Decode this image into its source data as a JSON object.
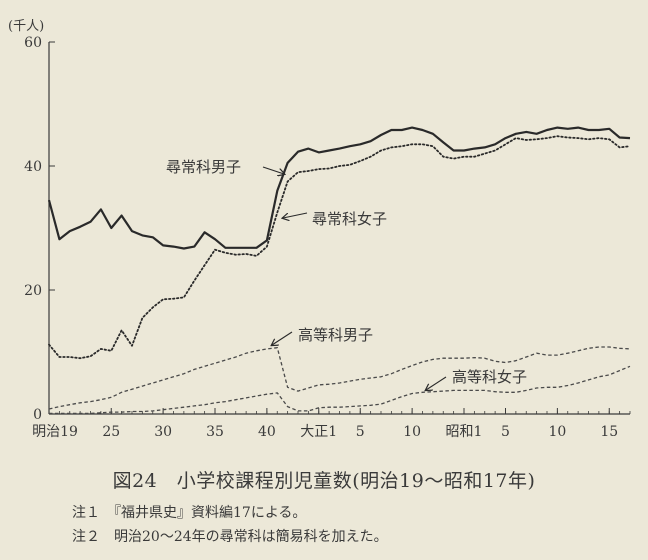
{
  "caption": "図24　小学校課程別児童数(明治19～昭和17年)",
  "notes": [
    "注１　『福井県史』資料編17による。",
    "注２　明治20～24年の尋常科は簡易科を加えた。"
  ],
  "chart_data": {
    "type": "line",
    "ylabel": "(千人)",
    "ylim": [
      0,
      60
    ],
    "yticks": [
      0,
      20,
      40,
      60
    ],
    "x": [
      1886,
      1887,
      1888,
      1889,
      1890,
      1891,
      1892,
      1893,
      1894,
      1895,
      1896,
      1897,
      1898,
      1899,
      1900,
      1901,
      1902,
      1903,
      1904,
      1905,
      1906,
      1907,
      1908,
      1909,
      1910,
      1911,
      1912,
      1913,
      1914,
      1915,
      1916,
      1917,
      1918,
      1919,
      1920,
      1921,
      1922,
      1923,
      1924,
      1925,
      1926,
      1927,
      1928,
      1929,
      1930,
      1931,
      1932,
      1933,
      1934,
      1935,
      1936,
      1937,
      1938,
      1939,
      1940,
      1941,
      1942
    ],
    "xlim": [
      1886,
      1942
    ],
    "xticks": [
      {
        "x": 1886,
        "label": "明治19"
      },
      {
        "x": 1892,
        "label": "25"
      },
      {
        "x": 1897,
        "label": "30"
      },
      {
        "x": 1902,
        "label": "35"
      },
      {
        "x": 1907,
        "label": "40"
      },
      {
        "x": 1912,
        "label": "大正1"
      },
      {
        "x": 1916,
        "label": "5"
      },
      {
        "x": 1921,
        "label": "10"
      },
      {
        "x": 1926,
        "label": "昭和1"
      },
      {
        "x": 1930,
        "label": "5"
      },
      {
        "x": 1935,
        "label": "10"
      },
      {
        "x": 1940,
        "label": "15"
      }
    ],
    "series": [
      {
        "name": "尋常科男子",
        "style": "solid",
        "color": "#2a2a2a",
        "width": 2.2,
        "values": [
          34.5,
          28.2,
          29.5,
          30.2,
          31,
          33,
          30,
          32,
          29.5,
          28.8,
          28.5,
          27.2,
          27,
          26.7,
          27,
          29.3,
          28.2,
          26.8,
          26.8,
          26.8,
          26.8,
          28,
          36,
          40.5,
          42.3,
          42.8,
          42.2,
          42.5,
          42.8,
          43.2,
          43.5,
          44,
          45,
          45.8,
          45.8,
          46.2,
          45.8,
          45.2,
          43.8,
          42.5,
          42.5,
          42.8,
          43,
          43.5,
          44.5,
          45.2,
          45.5,
          45.2,
          45.8,
          46.2,
          46,
          46.2,
          45.8,
          45.8,
          46,
          44.6,
          44.5
        ]
      },
      {
        "name": "尋常科女子",
        "style": "dotted",
        "color": "#2a2a2a",
        "width": 1.8,
        "values": [
          11.2,
          9.2,
          9.2,
          9,
          9.3,
          10.5,
          10.2,
          13.5,
          11,
          15.5,
          17.2,
          18.5,
          18.6,
          18.8,
          21.5,
          24,
          26.5,
          26,
          25.7,
          25.8,
          25.5,
          27,
          32.5,
          37.5,
          39,
          39.2,
          39.5,
          39.6,
          40,
          40.2,
          40.8,
          41.5,
          42.5,
          43,
          43.2,
          43.5,
          43.5,
          43.2,
          41.5,
          41.2,
          41.5,
          41.5,
          42,
          42.5,
          43.5,
          44.5,
          44.2,
          44.3,
          44.5,
          44.8,
          44.6,
          44.5,
          44.3,
          44.5,
          44.3,
          43,
          43.2
        ]
      },
      {
        "name": "高等科男子",
        "style": "dashed",
        "color": "#4a4a4a",
        "width": 1.3,
        "values": [
          0.8,
          1.2,
          1.5,
          1.8,
          2,
          2.3,
          2.7,
          3.5,
          4,
          4.5,
          5,
          5.5,
          6,
          6.5,
          7.2,
          7.7,
          8.2,
          8.7,
          9.2,
          9.8,
          10.2,
          10.5,
          10.7,
          4.3,
          3.7,
          4.2,
          4.7,
          4.8,
          5,
          5.3,
          5.6,
          5.8,
          6,
          6.5,
          7.2,
          7.8,
          8.4,
          8.8,
          9,
          9,
          9,
          9.1,
          9,
          8.5,
          8.3,
          8.6,
          9.2,
          9.8,
          9.5,
          9.5,
          9.8,
          10.2,
          10.6,
          10.8,
          10.8,
          10.6,
          10.5
        ]
      },
      {
        "name": "高等科女子",
        "style": "dashed",
        "color": "#4a4a4a",
        "width": 1.3,
        "values": [
          0.1,
          0.1,
          0.1,
          0.1,
          0.1,
          0.2,
          0.3,
          0.3,
          0.4,
          0.4,
          0.5,
          0.7,
          0.9,
          1.1,
          1.3,
          1.5,
          1.8,
          2,
          2.3,
          2.6,
          2.9,
          3.2,
          3.4,
          1.2,
          0.5,
          0.5,
          1,
          1.1,
          1.1,
          1.2,
          1.3,
          1.4,
          1.6,
          2.2,
          2.8,
          3.3,
          3.5,
          3.6,
          3.7,
          3.8,
          3.8,
          3.8,
          3.8,
          3.6,
          3.5,
          3.5,
          3.8,
          4.2,
          4.3,
          4.3,
          4.6,
          5,
          5.5,
          6,
          6.3,
          7,
          7.7
        ]
      }
    ],
    "annotations": [
      {
        "text": "尋常科男子",
        "series": 0
      },
      {
        "text": "尋常科女子",
        "series": 1
      },
      {
        "text": "高等科男子",
        "series": 2
      },
      {
        "text": "高等科女子",
        "series": 3
      }
    ]
  }
}
